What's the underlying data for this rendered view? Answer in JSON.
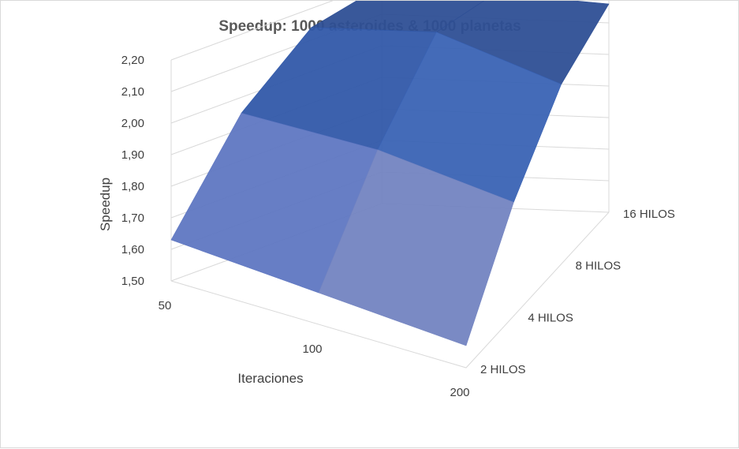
{
  "chart_data": {
    "type": "surface",
    "title": "Speedup: 1000 asteroides & 1000 planetas",
    "ylabel": "Speedup",
    "xlabel": "Iteraciones",
    "x_categories": [
      "50",
      "100",
      "200"
    ],
    "depth_categories": [
      "2 HILOS",
      "4 HILOS",
      "8 HILOS",
      "16 HILOS"
    ],
    "z_ticks": [
      "1,50",
      "1,60",
      "1,70",
      "1,80",
      "1,90",
      "2,00",
      "2,10",
      "2,20"
    ],
    "zlim": [
      1.5,
      2.2
    ],
    "grid": true,
    "series": [
      {
        "name": "2 HILOS",
        "values": [
          1.63,
          1.6,
          1.57
        ]
      },
      {
        "name": "4 HILOS",
        "values": [
          1.95,
          1.93,
          1.86
        ]
      },
      {
        "name": "8 HILOS",
        "values": [
          2.14,
          2.18,
          2.07
        ]
      },
      {
        "name": "16 HILOS",
        "values": [
          2.19,
          2.18,
          2.16
        ]
      }
    ],
    "band_colors": [
      "#97a5c8",
      "#8897c6",
      "#7384c1",
      "#5f77c2",
      "#4469b8",
      "#3a63b4",
      "#3159a9",
      "#2e4f95"
    ]
  }
}
